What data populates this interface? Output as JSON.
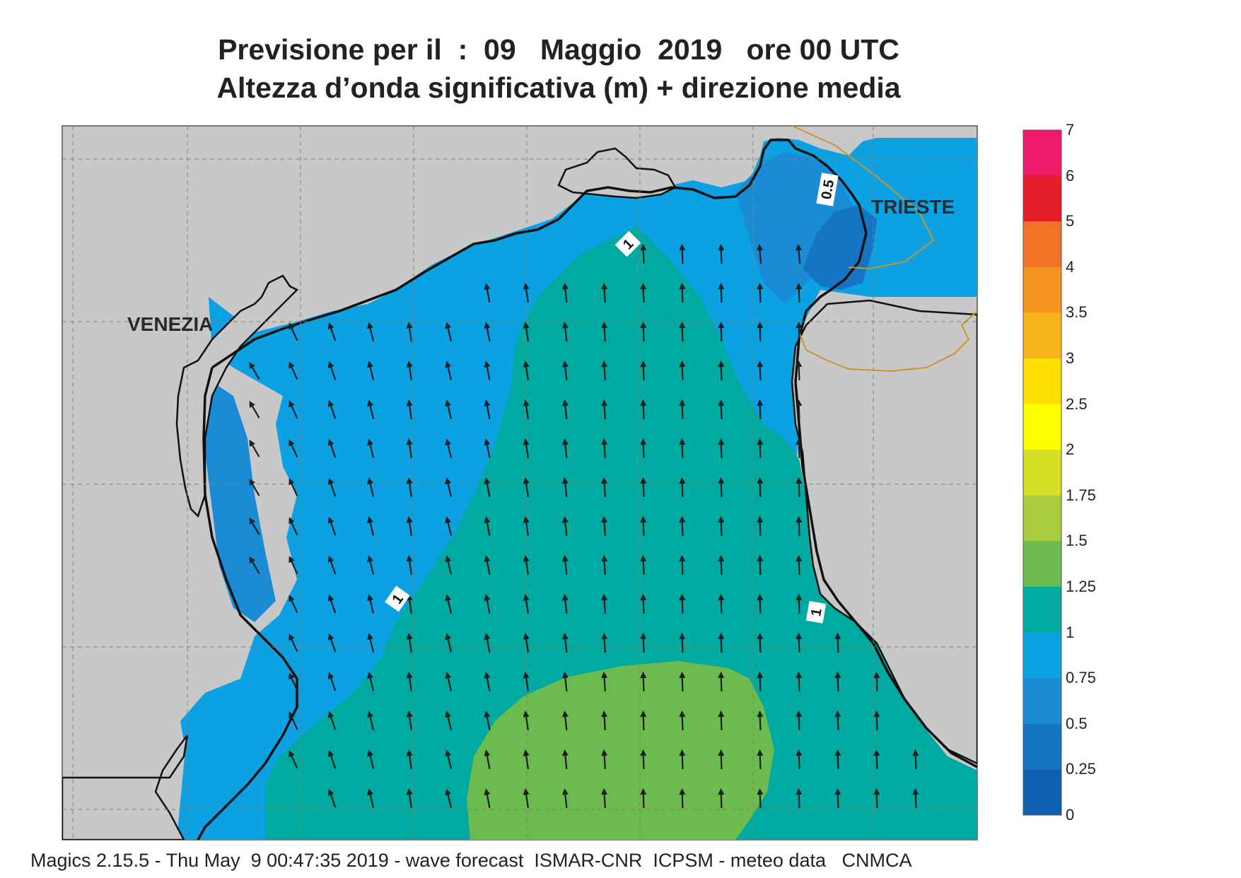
{
  "title": {
    "line1": "Previsione per il  :  09   Maggio  2019   ore 00 UTC",
    "line2": "Altezza d’onda significativa (m) + direzione media"
  },
  "map": {
    "cities": [
      {
        "name": "VENEZIA"
      },
      {
        "name": "TRIESTE"
      }
    ],
    "contour_labels": [
      "0.5",
      "1",
      "1",
      "1"
    ],
    "colors": {
      "land": "#c8c8c8",
      "border": "#c8962a",
      "arrow": "#1e1e1e",
      "coast": "#111111"
    }
  },
  "legend": {
    "labels": [
      "7",
      "6",
      "5",
      "4",
      "3.5",
      "3",
      "2.5",
      "2",
      "1.75",
      "1.5",
      "1.25",
      "1",
      "0.75",
      "0.5",
      "0.25",
      "0"
    ],
    "colors": [
      "#ef1a6a",
      "#e41d2a",
      "#f07327",
      "#f5951f",
      "#f8b51b",
      "#fde000",
      "#ffff00",
      "#d8e026",
      "#a9cd3c",
      "#6cbb4f",
      "#00aaa0",
      "#0ba1e3",
      "#1a8cd6",
      "#1575c4",
      "#0d60b0"
    ]
  },
  "footer": "Magics 2.15.5 - Thu May  9 00:47:35 2019 - wave forecast  ISMAR-CNR  ICPSM - meteo data   CNMCA"
}
